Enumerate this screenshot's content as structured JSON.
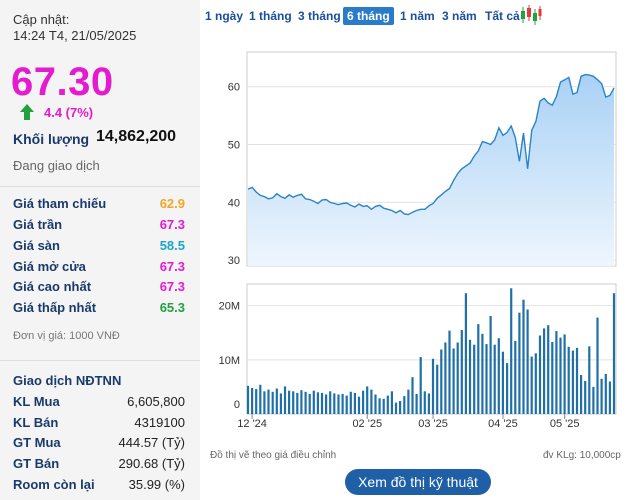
{
  "header": {
    "updated_label": "Cập nhật:",
    "updated_time": "14:24 T4, 21/05/2025",
    "price": "67.30",
    "change": "4.4 (7%)",
    "volume_label": "Khối lượng",
    "volume_value": "14,862,200",
    "status": "Đang giao dịch"
  },
  "prices": [
    {
      "label": "Giá tham chiếu",
      "value": "62.9",
      "color": "#f5a623"
    },
    {
      "label": "Giá trần",
      "value": "67.3",
      "color": "#e51bd0"
    },
    {
      "label": "Giá sàn",
      "value": "58.5",
      "color": "#1aa6c8"
    },
    {
      "label": "Giá mở cửa",
      "value": "67.3",
      "color": "#e51bd0"
    },
    {
      "label": "Giá cao nhất",
      "value": "67.3",
      "color": "#e51bd0"
    },
    {
      "label": "Giá thấp nhất",
      "value": "65.3",
      "color": "#23a040"
    }
  ],
  "unit_note": "Đơn vị giá: 1000 VNĐ",
  "foreign": {
    "title": "Giao dịch NĐTNN",
    "rows": [
      {
        "label": "KL Mua",
        "value": "6,605,800"
      },
      {
        "label": "KL Bán",
        "value": "4319100"
      },
      {
        "label": "GT Mua",
        "value": "444.57 (Tỷ)"
      },
      {
        "label": "GT Bán",
        "value": "290.68 (Tỷ)"
      },
      {
        "label": "Room còn lại",
        "value": "35.99 (%)"
      }
    ]
  },
  "tabs": [
    "1 ngày",
    "1 tháng",
    "3 tháng",
    "6 tháng",
    "1 năm",
    "3 năm",
    "Tất cả"
  ],
  "active_tab": "6 tháng",
  "icons": {
    "candlestick": "candlestick-chart-icon",
    "up_arrow": "up-arrow-icon"
  },
  "colors": {
    "price_up": "#e51bd0",
    "line": "#2b83c9",
    "area": "#cfe5fa",
    "volume_bar": "#1f6fa8",
    "active_tab": "#2a7bc8"
  },
  "chart_data": [
    {
      "type": "area",
      "x_tick_labels": [
        "12 '24",
        "02 '25",
        "03 '25",
        "04 '25",
        "05 '25"
      ],
      "y_ticks": [
        30,
        40,
        50,
        60
      ],
      "ylim": [
        29,
        66
      ],
      "values": [
        42.3,
        42.6,
        41.8,
        41.2,
        41.0,
        40.6,
        40.8,
        41.5,
        41.0,
        40.7,
        41.3,
        40.9,
        41.2,
        41.4,
        40.6,
        40.5,
        40.2,
        39.8,
        40.4,
        40.5,
        40.0,
        39.8,
        39.6,
        39.8,
        39.9,
        39.5,
        39.2,
        39.7,
        39.3,
        39.4,
        38.8,
        39.3,
        39.5,
        39.0,
        38.8,
        38.6,
        38.2,
        38.6,
        38.0,
        37.9,
        38.3,
        38.6,
        38.8,
        38.8,
        39.4,
        39.8,
        40.7,
        41.3,
        41.9,
        42.4,
        43.8,
        45.0,
        45.8,
        46.3,
        46.8,
        48.0,
        48.9,
        50.5,
        50.3,
        50.0,
        50.8,
        52.9,
        51.6,
        52.1,
        53.2,
        51.2,
        47.1,
        52.0,
        45.8,
        52.5,
        54.0,
        57.5,
        58.0,
        57.2,
        56.8,
        58.3,
        60.8,
        61.2,
        61.6,
        58.7,
        59.0,
        61.8,
        62.1,
        62.0,
        61.8,
        61.2,
        60.5,
        58.2,
        58.5,
        59.8
      ]
    },
    {
      "type": "bar",
      "x_tick_labels": [
        "12 '24",
        "02 '25",
        "03 '25",
        "04 '25",
        "05 '25"
      ],
      "y_ticks": [
        "0",
        "10M",
        "20M"
      ],
      "ylim": [
        0,
        24000000
      ],
      "values": [
        5200000,
        4800000,
        4600000,
        5400000,
        4200000,
        4500000,
        4100000,
        4700000,
        3800000,
        5100000,
        4300000,
        4200000,
        3900000,
        4400000,
        4100000,
        3700000,
        4300000,
        4000000,
        3900000,
        3600000,
        4200000,
        3800000,
        3600000,
        3700000,
        3400000,
        4100000,
        3900000,
        3200000,
        4300000,
        5100000,
        4500000,
        3600000,
        2900000,
        2800000,
        3400000,
        4200000,
        2100000,
        2400000,
        3300000,
        4500000,
        6800000,
        3700000,
        10500000,
        4200000,
        3800000,
        10200000,
        9100000,
        11900000,
        13200000,
        15400000,
        12100000,
        13200000,
        15500000,
        22300000,
        13700000,
        12800000,
        16600000,
        14800000,
        12900000,
        18100000,
        12800000,
        14000000,
        11500000,
        9400000,
        23200000,
        13500000,
        18700000,
        21100000,
        19300000,
        10600000,
        11200000,
        14500000,
        15800000,
        16400000,
        13300000,
        15300000,
        14100000,
        14700000,
        12400000,
        11700000,
        12200000,
        7200000,
        6100000,
        12500000,
        5000000,
        17800000,
        6500000,
        7400000,
        6000000,
        22300000
      ]
    }
  ],
  "footer": {
    "adjusted_note": "Đồ thị vẽ theo giá điều chỉnh",
    "volume_unit": "đv KLg: 10,000cp",
    "tech_button": "Xem đồ thị kỹ thuật"
  }
}
